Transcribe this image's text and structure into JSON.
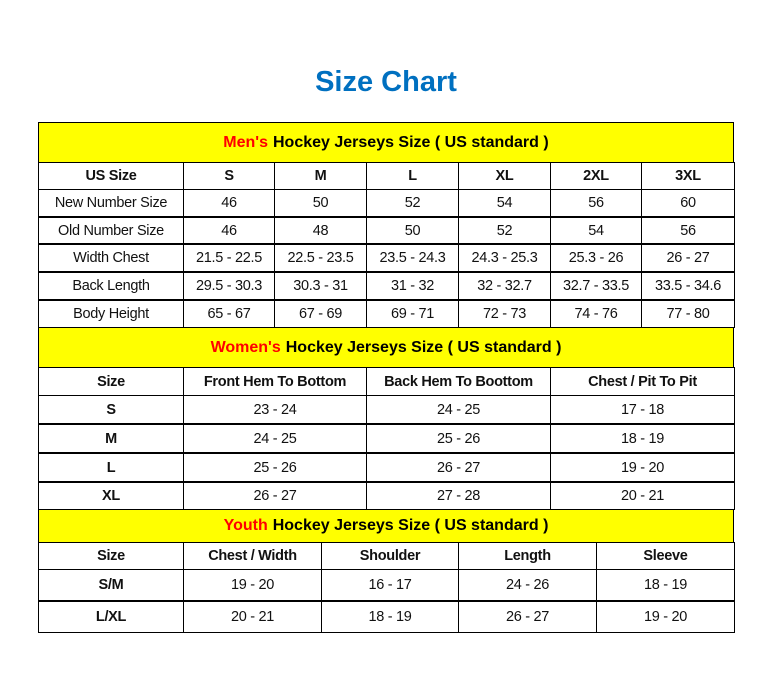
{
  "title": "Size Chart",
  "colors": {
    "title": "#0070c0",
    "band": "#ffff00",
    "highlight": "#ff0000"
  },
  "men": {
    "highlight": "Men's",
    "heading": "Hockey Jerseys Size ( US standard )",
    "columns": [
      "US Size",
      "S",
      "M",
      "L",
      "XL",
      "2XL",
      "3XL"
    ],
    "rows": [
      [
        "New Number Size",
        "46",
        "50",
        "52",
        "54",
        "56",
        "60"
      ],
      [
        "Old Number Size",
        "46",
        "48",
        "50",
        "52",
        "54",
        "56"
      ],
      [
        "Width Chest",
        "21.5 - 22.5",
        "22.5 - 23.5",
        "23.5 - 24.3",
        "24.3 - 25.3",
        "25.3 - 26",
        "26 - 27"
      ],
      [
        "Back Length",
        "29.5 - 30.3",
        "30.3 - 31",
        "31 - 32",
        "32 - 32.7",
        "32.7 - 33.5",
        "33.5 - 34.6"
      ],
      [
        "Body Height",
        "65 - 67",
        "67 - 69",
        "69 - 71",
        "72 - 73",
        "74 - 76",
        "77 - 80"
      ]
    ]
  },
  "women": {
    "highlight": "Women's",
    "heading": "Hockey Jerseys Size ( US standard )",
    "columns": [
      "Size",
      "Front Hem To Bottom",
      "Back Hem To Boottom",
      "Chest / Pit To Pit"
    ],
    "rows": [
      [
        "S",
        "23 - 24",
        "24 - 25",
        "17 - 18"
      ],
      [
        "M",
        "24 - 25",
        "25 - 26",
        "18 - 19"
      ],
      [
        "L",
        "25 - 26",
        "26 - 27",
        "19 - 20"
      ],
      [
        "XL",
        "26 - 27",
        "27 - 28",
        "20 - 21"
      ]
    ]
  },
  "youth": {
    "highlight": "Youth",
    "heading": "Hockey Jerseys Size ( US standard )",
    "columns": [
      "Size",
      "Chest / Width",
      "Shoulder",
      "Length",
      "Sleeve"
    ],
    "rows": [
      [
        "S/M",
        "19 - 20",
        "16 - 17",
        "24 - 26",
        "18 - 19"
      ],
      [
        "L/XL",
        "20 - 21",
        "18 - 19",
        "26 - 27",
        "19 - 20"
      ]
    ]
  }
}
